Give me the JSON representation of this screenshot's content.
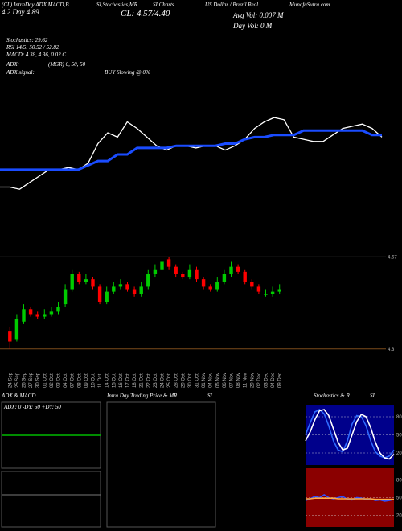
{
  "header": {
    "top_left": "(CL) IntraDay ADX,MACD,B",
    "top_mid": "SI,Stochastics,MR",
    "top_mid2": "SI Charts",
    "top_name": "US Dollar / Brazil Real",
    "top_site": "MunafaSutra.com",
    "day_range": "4.2 Day  4.89",
    "price_line": "CL: 4.57/4.40",
    "avg_vol": "Avg Vol: 0.007 M",
    "day_vol": "Day Vol: 0  M",
    "stochastics": "Stochastics: 29.62",
    "rsi": "RSI 14/5: 50.52 / 52.82",
    "macd": "MACD: 4.38, 4.36, 0.02  C",
    "adx_label": "ADX:",
    "adx_value": "(MGR) 0, 50, 50",
    "adx_signal_label": "ADX  signal:",
    "adx_signal": "BUY Slowing @ 0%"
  },
  "chart_data": [
    {
      "type": "line",
      "ylim": [
        0,
        100
      ],
      "series": [
        {
          "color": "#ffffff",
          "values": [
            25,
            25,
            24,
            27,
            30,
            33,
            33,
            34,
            33,
            36,
            45,
            50,
            48,
            55,
            52,
            48,
            44,
            42,
            44,
            44,
            43,
            44,
            44,
            42,
            44,
            47,
            52,
            55,
            57,
            56,
            48,
            47,
            46,
            46,
            49,
            52,
            53,
            54,
            52,
            48
          ]
        },
        {
          "color": "#1a4cff",
          "values": [
            33,
            33,
            33,
            33,
            33,
            33,
            33,
            33,
            33,
            35,
            37,
            37,
            40,
            40,
            43,
            43,
            43,
            43,
            44,
            44,
            44,
            44,
            44,
            45,
            45,
            47,
            48,
            48,
            49,
            49,
            49,
            51,
            51,
            51,
            51,
            51,
            51,
            51,
            49,
            49
          ]
        }
      ]
    },
    {
      "type": "candlestick",
      "categories": [
        "24 Sep",
        "25 Sep",
        "26 Sep",
        "27 Sep",
        "30 Sep",
        "01 Oct",
        "02 Oct",
        "03 Oct",
        "04 Oct",
        "07 Oct",
        "08 Oct",
        "09 Oct",
        "10 Oct",
        "11 Oct",
        "14 Oct",
        "15 Oct",
        "16 Oct",
        "17 Oct",
        "18 Oct",
        "21 Oct",
        "22 Oct",
        "23 Oct",
        "24 Oct",
        "25 Oct",
        "28 Oct",
        "29 Oct",
        "30 Oct",
        "31 Oct",
        "01 Nov",
        "04 Nov",
        "05 Nov",
        "06 Nov",
        "07 Nov",
        "08 Nov",
        "11 Nov",
        "29 Nov",
        "02 Dec",
        "03 Dec",
        "04 Dec",
        "09 Dec"
      ],
      "open": [
        4.37,
        4.34,
        4.41,
        4.46,
        4.44,
        4.43,
        4.44,
        4.45,
        4.48,
        4.54,
        4.6,
        4.57,
        4.58,
        4.55,
        4.49,
        4.53,
        4.55,
        4.56,
        4.54,
        4.52,
        4.55,
        4.6,
        4.62,
        4.66,
        4.63,
        4.6,
        4.59,
        4.62,
        4.58,
        4.55,
        4.54,
        4.57,
        4.6,
        4.63,
        4.61,
        4.57,
        4.55,
        4.52,
        4.52,
        4.53
      ],
      "high": [
        4.39,
        4.44,
        4.48,
        4.47,
        4.45,
        4.46,
        4.47,
        4.49,
        4.56,
        4.62,
        4.61,
        4.6,
        4.59,
        4.56,
        4.55,
        4.57,
        4.58,
        4.57,
        4.55,
        4.57,
        4.62,
        4.64,
        4.67,
        4.67,
        4.64,
        4.61,
        4.64,
        4.63,
        4.59,
        4.56,
        4.59,
        4.62,
        4.65,
        4.64,
        4.62,
        4.58,
        4.56,
        4.54,
        4.55,
        4.56
      ],
      "low": [
        4.3,
        4.33,
        4.4,
        4.43,
        4.42,
        4.42,
        4.43,
        4.44,
        4.47,
        4.53,
        4.56,
        4.56,
        4.54,
        4.48,
        4.48,
        4.52,
        4.54,
        4.53,
        4.51,
        4.51,
        4.54,
        4.59,
        4.61,
        4.62,
        4.59,
        4.58,
        4.58,
        4.57,
        4.54,
        4.53,
        4.53,
        4.56,
        4.59,
        4.6,
        4.56,
        4.54,
        4.52,
        4.51,
        4.51,
        4.52
      ],
      "close": [
        4.33,
        4.42,
        4.46,
        4.44,
        4.43,
        4.44,
        4.45,
        4.47,
        4.54,
        4.6,
        4.57,
        4.58,
        4.55,
        4.49,
        4.53,
        4.55,
        4.56,
        4.54,
        4.52,
        4.55,
        4.6,
        4.62,
        4.65,
        4.63,
        4.6,
        4.59,
        4.62,
        4.58,
        4.55,
        4.54,
        4.57,
        4.6,
        4.63,
        4.61,
        4.57,
        4.55,
        4.53,
        4.52,
        4.53,
        4.54
      ],
      "ylim": [
        4.28,
        4.7
      ],
      "yticks": [
        4.67,
        4.3
      ],
      "up_color": "#00cc00",
      "down_color": "#ff0000"
    },
    {
      "type": "line",
      "title": "ADX  & MACD",
      "subtitle": "ADX: 0  -DY: 50  +DY: 50",
      "ylim": [
        0,
        100
      ],
      "series": [
        {
          "color": "#00bb00",
          "values": [
            50,
            50,
            50,
            50,
            50,
            50,
            50,
            50,
            50,
            50,
            50,
            50
          ]
        }
      ]
    },
    {
      "type": "line",
      "title": "Intra  Day Trading Price  & MR",
      "title2": "SI",
      "series": []
    },
    {
      "type": "line",
      "title": "Stochastics & R",
      "title2": "SI",
      "background": "#00008b",
      "ylim": [
        0,
        100
      ],
      "yticks": [
        80,
        50,
        20
      ],
      "series": [
        {
          "color": "#2f6bff",
          "values": [
            50,
            70,
            88,
            92,
            85,
            65,
            40,
            25,
            22,
            40,
            68,
            82,
            80,
            65,
            40,
            22,
            15,
            12,
            15,
            25
          ]
        },
        {
          "color": "#ffffff",
          "values": [
            40,
            55,
            75,
            90,
            92,
            82,
            60,
            38,
            25,
            28,
            50,
            72,
            84,
            80,
            62,
            38,
            20,
            12,
            10,
            18
          ]
        }
      ]
    },
    {
      "type": "line",
      "background": "#8b0000",
      "ylim": [
        0,
        100
      ],
      "yticks": [
        80,
        50,
        20
      ],
      "series": [
        {
          "color": "#3050ff",
          "values": [
            45,
            48,
            52,
            50,
            55,
            50,
            48,
            50,
            52,
            47,
            46,
            50,
            49,
            47,
            48,
            45,
            46,
            44,
            45,
            47
          ]
        },
        {
          "color": "#ffaa44",
          "values": [
            48,
            48,
            49,
            49,
            49,
            49,
            49,
            48,
            48,
            48,
            48,
            48,
            48,
            48,
            48,
            47,
            47,
            47,
            47,
            47
          ]
        }
      ]
    }
  ]
}
